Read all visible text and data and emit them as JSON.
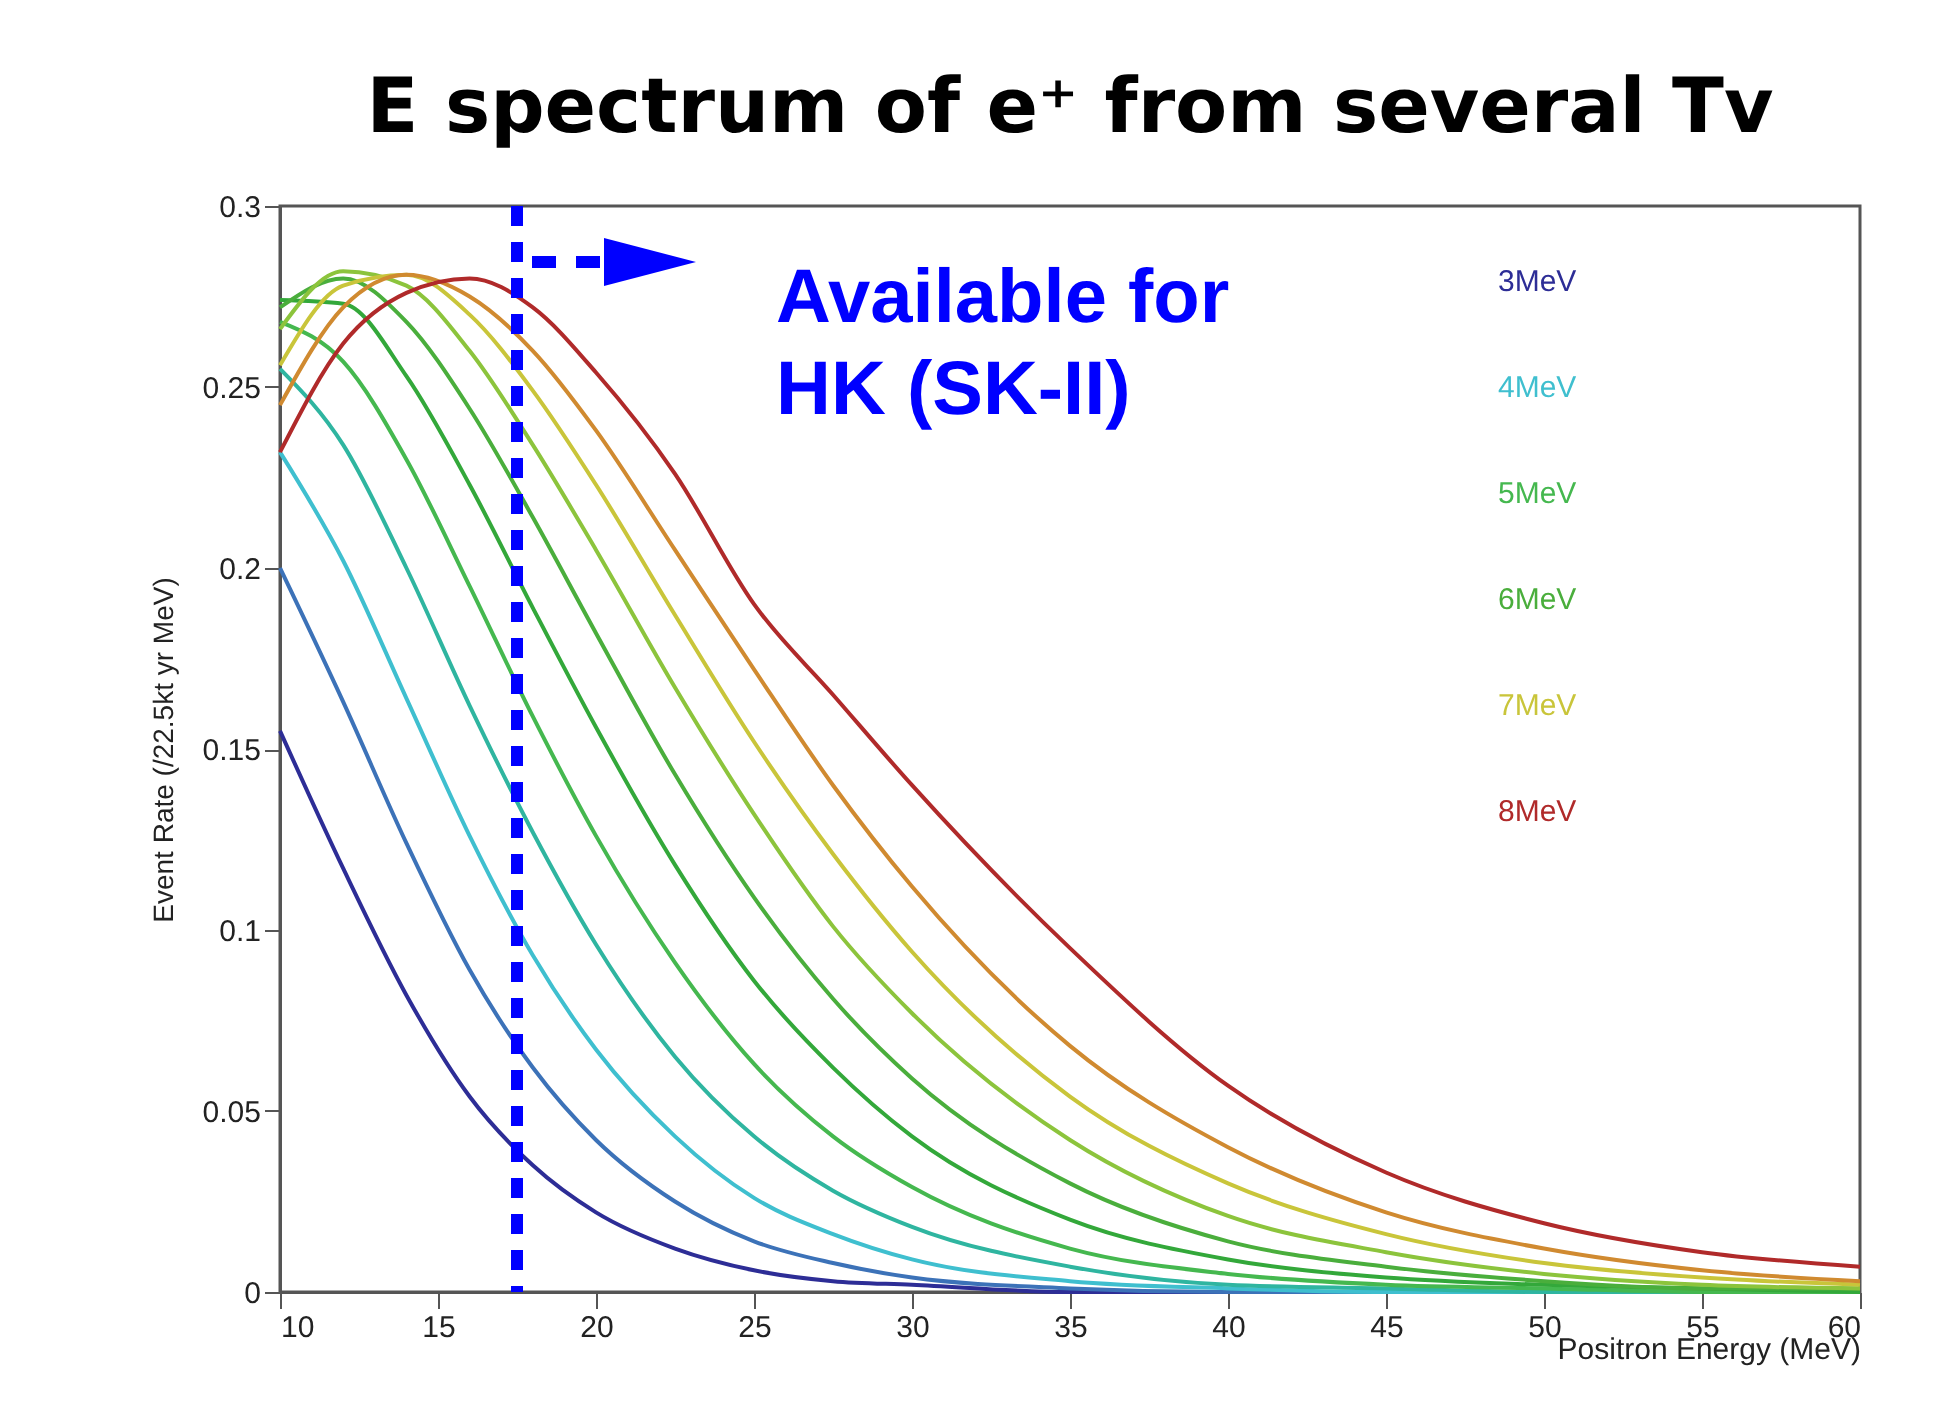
{
  "chart_data": {
    "type": "line",
    "title": "E spectrum of e⁺ from several Tv",
    "xlabel": "Positron Energy (MeV)",
    "ylabel": "Event Rate (/22.5kt yr MeV)",
    "x": [
      10,
      12,
      14,
      16,
      18,
      20,
      22.5,
      25,
      27.5,
      30,
      35,
      40,
      45,
      50,
      55,
      60
    ],
    "series": [
      {
        "name": "3MeV",
        "color": "#2d2d96",
        "values": [
          0.155,
          0.117,
          0.082,
          0.054,
          0.035,
          0.022,
          0.012,
          0.006,
          0.003,
          0.002,
          0,
          0,
          0,
          null,
          null,
          null
        ]
      },
      {
        "color": "#3c72b8",
        "values": [
          0.2,
          0.163,
          0.124,
          0.089,
          0.062,
          0.042,
          0.025,
          0.014,
          0.008,
          0.004,
          0.001,
          0,
          0,
          0,
          null,
          null
        ]
      },
      {
        "name": "4MeV",
        "color": "#3fbfcf",
        "values": [
          0.232,
          0.202,
          0.164,
          0.126,
          0.093,
          0.067,
          0.043,
          0.026,
          0.016,
          0.009,
          0.003,
          0.001,
          0,
          0,
          0,
          0
        ]
      },
      {
        "color": "#2fb5a0",
        "values": [
          0.255,
          0.234,
          0.2,
          0.162,
          0.127,
          0.096,
          0.065,
          0.043,
          0.028,
          0.018,
          0.007,
          0.002,
          0.001,
          0,
          0,
          0
        ]
      },
      {
        "name": "5MeV",
        "color": "#45b84f",
        "values": [
          0.268,
          0.257,
          0.23,
          0.195,
          0.159,
          0.126,
          0.091,
          0.063,
          0.043,
          0.029,
          0.012,
          0.005,
          0.002,
          0.001,
          0,
          0
        ]
      },
      {
        "color": "#33a83a",
        "values": [
          0.274,
          0.273,
          0.253,
          0.223,
          0.189,
          0.156,
          0.118,
          0.086,
          0.062,
          0.043,
          0.02,
          0.009,
          0.004,
          0.002,
          0.001,
          0
        ]
      },
      {
        "name": "6MeV",
        "color": "#4aae3c",
        "values": [
          0.272,
          0.28,
          0.268,
          0.244,
          0.214,
          0.182,
          0.143,
          0.109,
          0.081,
          0.059,
          0.03,
          0.014,
          0.007,
          0.003,
          0.001,
          0.001
        ]
      },
      {
        "color": "#8cc43c",
        "values": [
          0.266,
          0.282,
          0.278,
          0.26,
          0.234,
          0.205,
          0.167,
          0.132,
          0.101,
          0.077,
          0.042,
          0.021,
          0.011,
          0.005,
          0.002,
          0.001
        ]
      },
      {
        "name": "7MeV",
        "color": "#c9c53a",
        "values": [
          0.256,
          0.278,
          0.281,
          0.27,
          0.249,
          0.223,
          0.187,
          0.152,
          0.121,
          0.094,
          0.054,
          0.03,
          0.016,
          0.008,
          0.004,
          0.002
        ]
      },
      {
        "color": "#d08a30",
        "values": [
          0.245,
          0.272,
          0.281,
          0.275,
          0.26,
          0.238,
          0.205,
          0.172,
          0.14,
          0.112,
          0.068,
          0.04,
          0.022,
          0.012,
          0.006,
          0.003
        ]
      },
      {
        "name": "8MeV",
        "color": "#b02a2a",
        "values": [
          0.232,
          0.262,
          0.276,
          0.28,
          0.272,
          0.254,
          0.226,
          0.19,
          0.165,
          0.14,
          0.095,
          0.057,
          0.033,
          0.019,
          0.011,
          0.007
        ]
      }
    ],
    "xlim": [
      10,
      60
    ],
    "xticks": [
      10,
      15,
      20,
      25,
      30,
      35,
      40,
      45,
      50,
      55,
      60
    ],
    "ylim": [
      0,
      0.3
    ],
    "yticks": [
      0,
      0.05,
      0.1,
      0.15,
      0.2,
      0.25,
      0.3
    ],
    "ref_lines": [
      {
        "axis": "x",
        "value": 17.5,
        "color": "#0000ff",
        "line_style": "dashed"
      }
    ],
    "annotations": [
      "Available for HK (SK-II)"
    ],
    "legend": "top right",
    "grid": false,
    "line_style": "solid"
  }
}
